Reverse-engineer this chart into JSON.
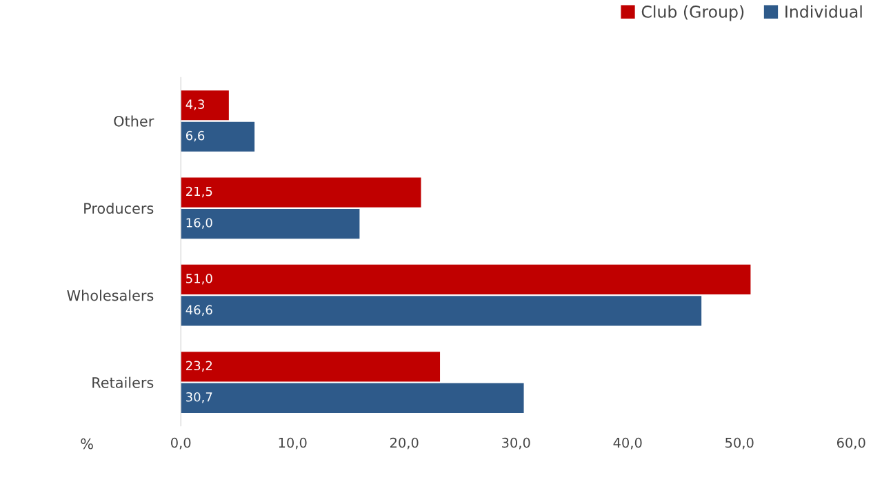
{
  "chart_data": {
    "type": "bar",
    "orientation": "horizontal",
    "xlabel": "%",
    "categories": [
      "Other",
      "Producers",
      "Wholesalers",
      "Retailers"
    ],
    "series": [
      {
        "name": "Club (Group)",
        "color": "#c00000",
        "values": [
          4.3,
          21.5,
          51.0,
          23.2
        ],
        "value_labels": [
          "4,3",
          "21,5",
          "51,0",
          "23,2"
        ]
      },
      {
        "name": "Individual",
        "color": "#2e5a8a",
        "values": [
          6.6,
          16.0,
          46.6,
          30.7
        ],
        "value_labels": [
          "6,6",
          "16,0",
          "46,6",
          "30,7"
        ]
      }
    ],
    "xlim": [
      0,
      60
    ],
    "xticks": [
      {
        "value": 0,
        "label": "0,0"
      },
      {
        "value": 10,
        "label": "10,0"
      },
      {
        "value": 20,
        "label": "20,0"
      },
      {
        "value": 30,
        "label": "30,0"
      },
      {
        "value": 40,
        "label": "40,0"
      },
      {
        "value": 50,
        "label": "50,0"
      },
      {
        "value": 60,
        "label": "60,0"
      }
    ],
    "grid": false,
    "legend": "top right"
  }
}
